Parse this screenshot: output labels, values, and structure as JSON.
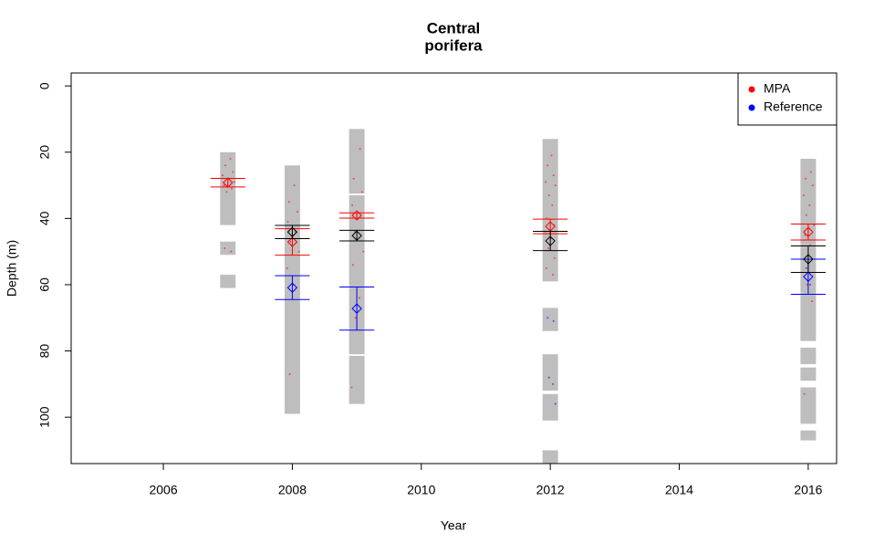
{
  "chart_data": {
    "type": "depth-errorbar",
    "title": "Central",
    "subtitle": "porifera",
    "x_label": "Year",
    "y_label": "Depth (m)",
    "xlim": [
      2004.57,
      2016.44
    ],
    "xticks": [
      2006,
      2008,
      2010,
      2012,
      2014,
      2016
    ],
    "ylim": [
      -3.9,
      114
    ],
    "y_reversed": true,
    "yticks": [
      0,
      20,
      40,
      60,
      80,
      100
    ],
    "legend": "topright",
    "coverage_color": "#bebebe",
    "coverage": [
      {
        "x": 2007,
        "ranges": [
          [
            20,
            42
          ],
          [
            47,
            51
          ],
          [
            57,
            61
          ]
        ]
      },
      {
        "x": 2008,
        "ranges": [
          [
            24,
            99
          ]
        ]
      },
      {
        "x": 2009,
        "ranges": [
          [
            13,
            32.5
          ],
          [
            33,
            81
          ],
          [
            81.5,
            96
          ]
        ]
      },
      {
        "x": 2012,
        "ranges": [
          [
            16,
            59
          ],
          [
            67,
            74
          ],
          [
            81,
            92
          ],
          [
            93,
            101
          ],
          [
            110,
            114
          ]
        ]
      },
      {
        "x": 2016,
        "ranges": [
          [
            22,
            77
          ],
          [
            79,
            84
          ],
          [
            85,
            89
          ],
          [
            91,
            102
          ],
          [
            104,
            107
          ]
        ]
      }
    ],
    "series": [
      {
        "name": "MPA",
        "color": "#ff0000",
        "x": [
          2007,
          2008,
          2009,
          2012,
          2016
        ],
        "values": [
          29.2,
          47.1,
          39.1,
          42.4,
          44.1
        ],
        "errors": [
          1.3,
          4,
          0.8,
          2.2,
          2.4
        ],
        "points_x": [
          2007.04,
          2006.96,
          2007.08,
          2006.92,
          2007.02,
          2007.1,
          2006.94,
          2007.06,
          2006.98,
          2006.95,
          2007.05,
          2008.03,
          2007.95,
          2008.08,
          2007.93,
          2008.05,
          2007.97,
          2008.1,
          2007.92,
          2008.02,
          2007.96,
          2009.05,
          2008.95,
          2009.08,
          2008.93,
          2009.02,
          2008.97,
          2009.1,
          2008.94,
          2009.04,
          2008.98,
          2008.92,
          2012.02,
          2011.96,
          2012.05,
          2011.93,
          2012.08,
          2011.98,
          2012.03,
          2011.95,
          2012.06,
          2011.92,
          2012.01,
          2011.97,
          2012.07,
          2011.94,
          2012.04,
          2016.04,
          2015.96,
          2016.07,
          2015.93,
          2016.02,
          2015.97,
          2016.09,
          2015.95,
          2016.03,
          2015.98,
          2016.06,
          2015.94
        ],
        "points_y": [
          22,
          24,
          26,
          27,
          28,
          29,
          30,
          31,
          32,
          49,
          50,
          30,
          35,
          38,
          41,
          44,
          47,
          50,
          55,
          60,
          87,
          19,
          28,
          32,
          36,
          40,
          44,
          50,
          54,
          64,
          70,
          91,
          21,
          24,
          27,
          29,
          30,
          33,
          36,
          40,
          42,
          44,
          46,
          49,
          52,
          55,
          57,
          26,
          28,
          30,
          33,
          36,
          39,
          42,
          45,
          48,
          60,
          65,
          93
        ]
      },
      {
        "name": "Reference",
        "color": "#0000ff",
        "x": [
          2008,
          2009,
          2016
        ],
        "values": [
          60.9,
          67.2,
          57.6
        ],
        "errors": [
          3.6,
          6.5,
          5.3
        ],
        "points_x": [
          2011.96,
          2012.05,
          2011.98,
          2012.04,
          2012.08,
          2015.97,
          2016.03
        ],
        "points_y": [
          70,
          71,
          88,
          90,
          96,
          55,
          60
        ]
      }
    ],
    "overall": {
      "color": "#000000",
      "x": [
        2008,
        2009,
        2012,
        2016
      ],
      "values": [
        44.1,
        45.2,
        46.8,
        52.3
      ],
      "errors": [
        2,
        1.6,
        2.9,
        4
      ]
    }
  }
}
